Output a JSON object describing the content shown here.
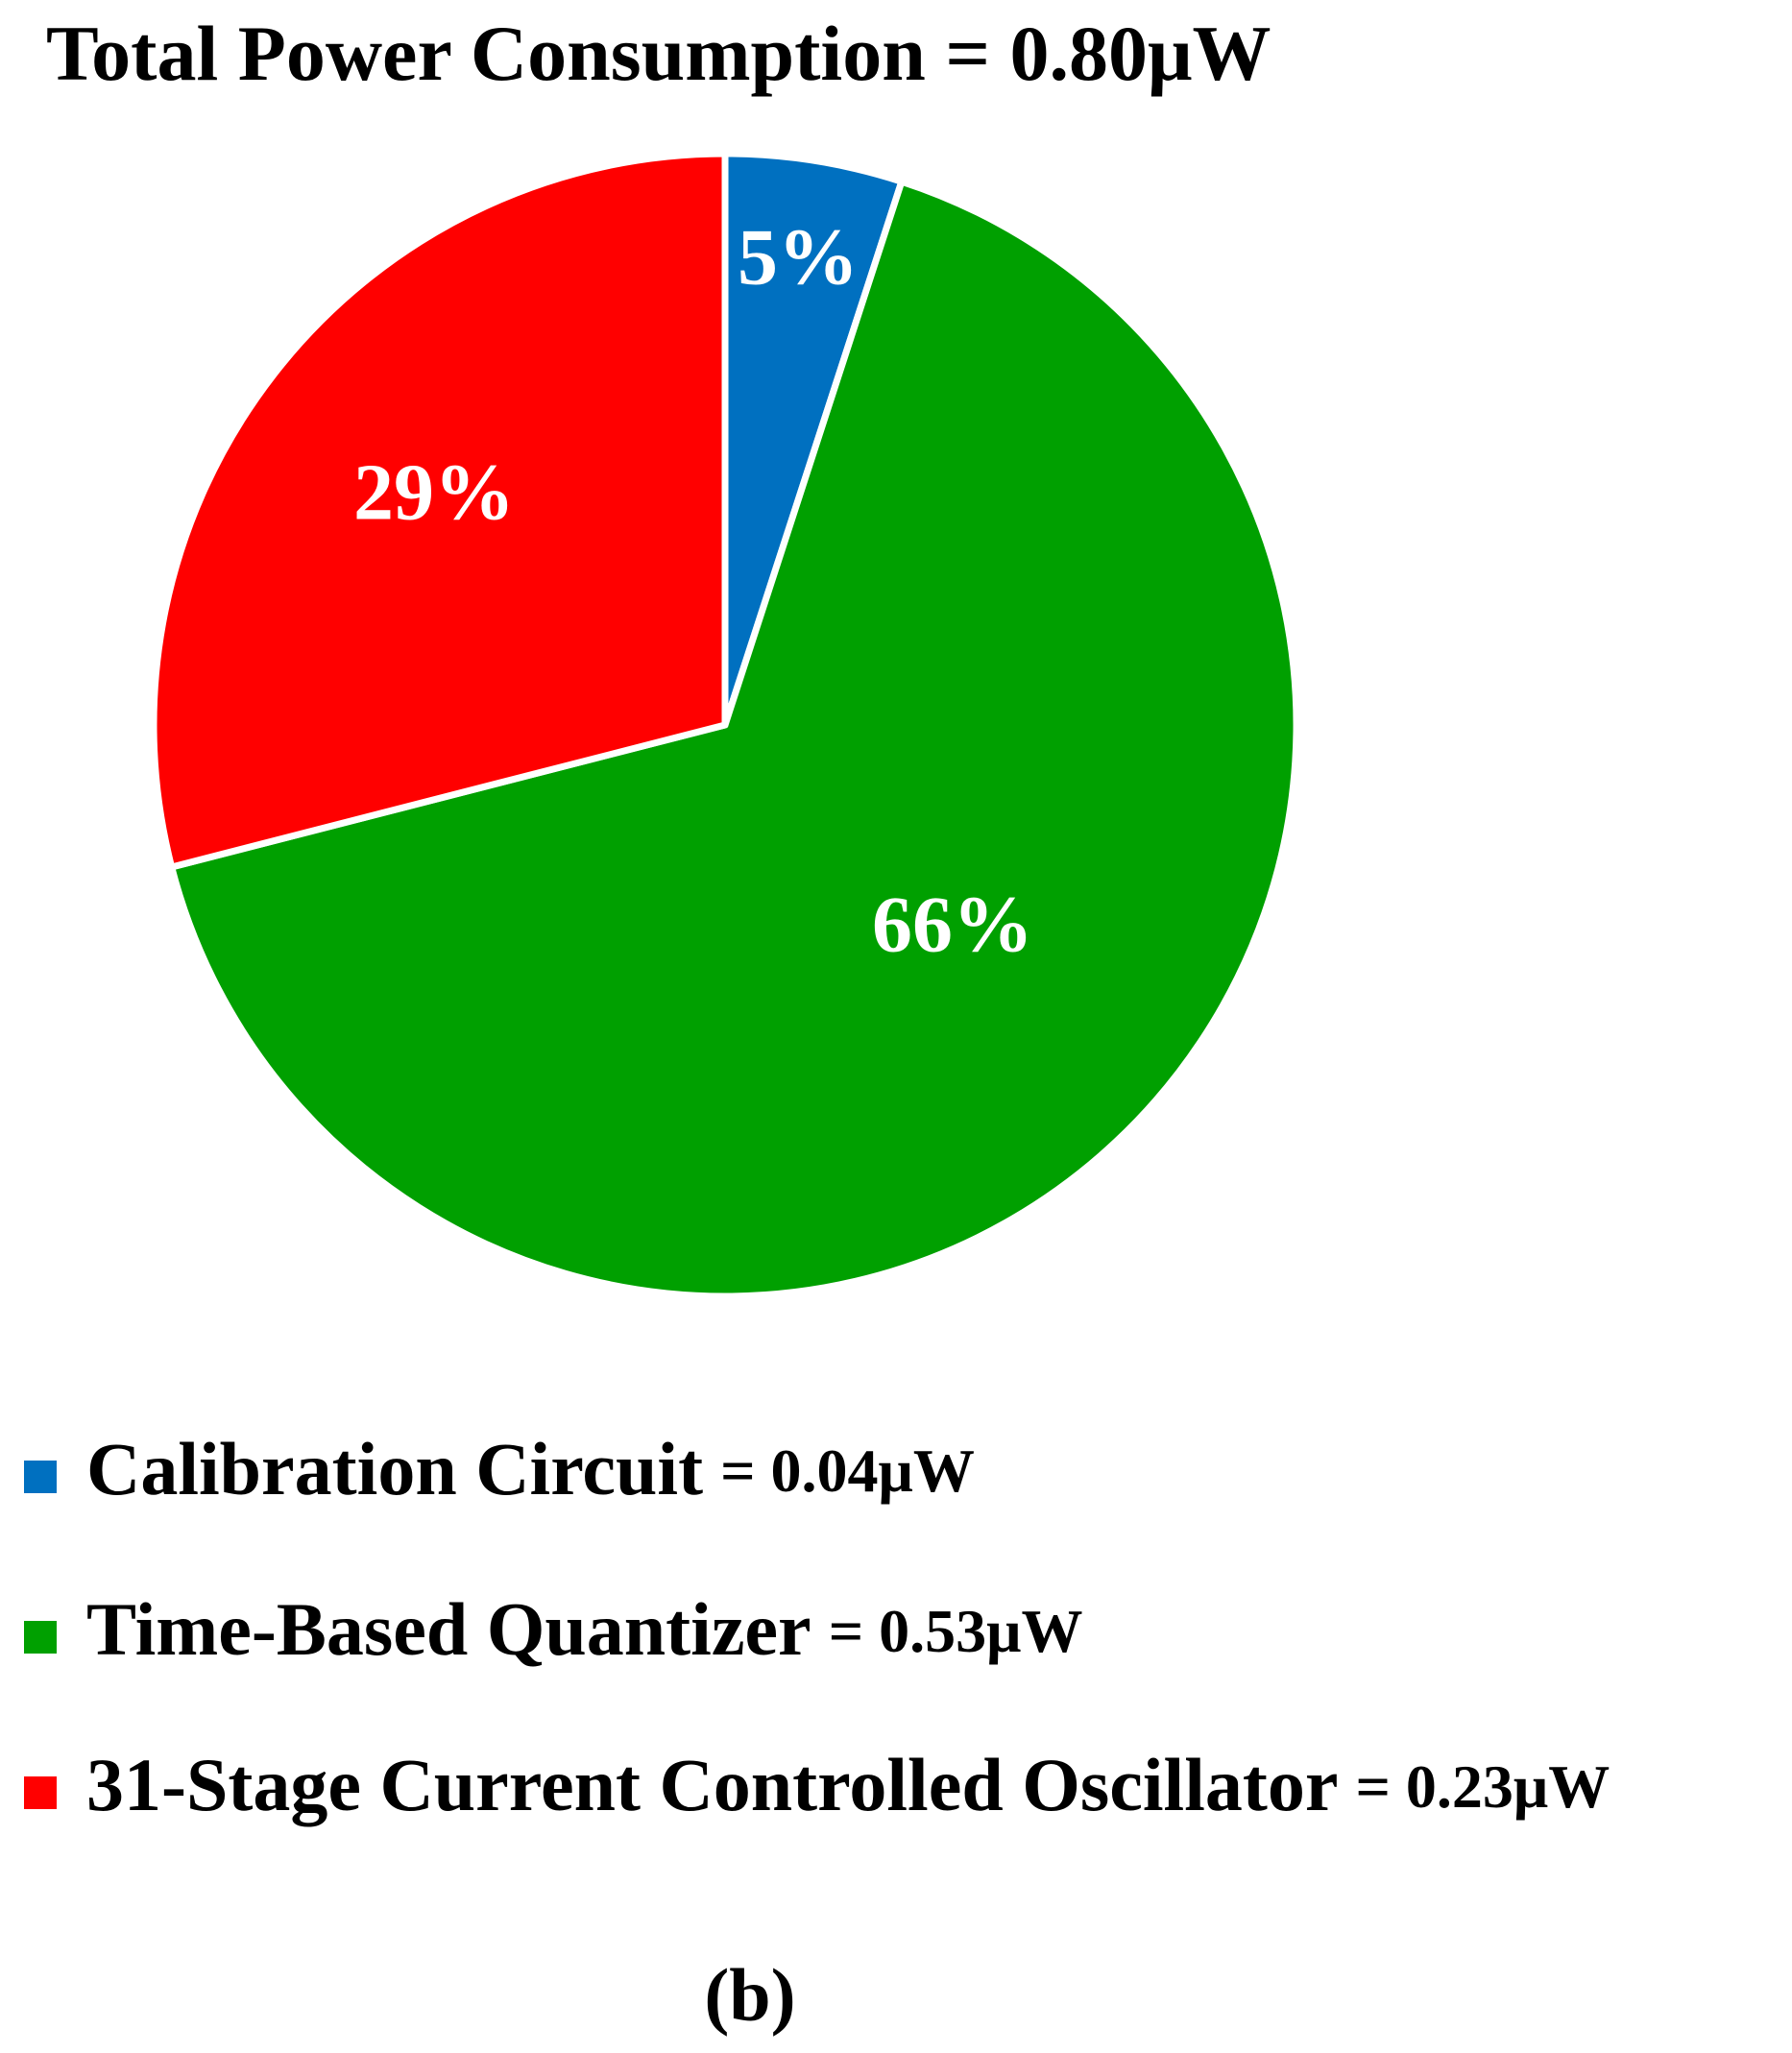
{
  "chart_data": {
    "type": "pie",
    "title": "Total Power Consumption = 0.80μW",
    "categories": [
      "Calibration Circuit",
      "Time-Based Quantizer",
      "31-Stage Current Controlled Oscillator"
    ],
    "values": [
      5,
      66,
      29
    ],
    "value_labels": [
      "5%",
      "66%",
      "29%"
    ],
    "colors": [
      "#0070c0",
      "#00a000",
      "#ff0000"
    ],
    "power_values": [
      0.04,
      0.53,
      0.23
    ],
    "power_labels": [
      "= 0.04μW",
      "= 0.53μW",
      "= 0.23μW"
    ],
    "caption": "(b)"
  }
}
